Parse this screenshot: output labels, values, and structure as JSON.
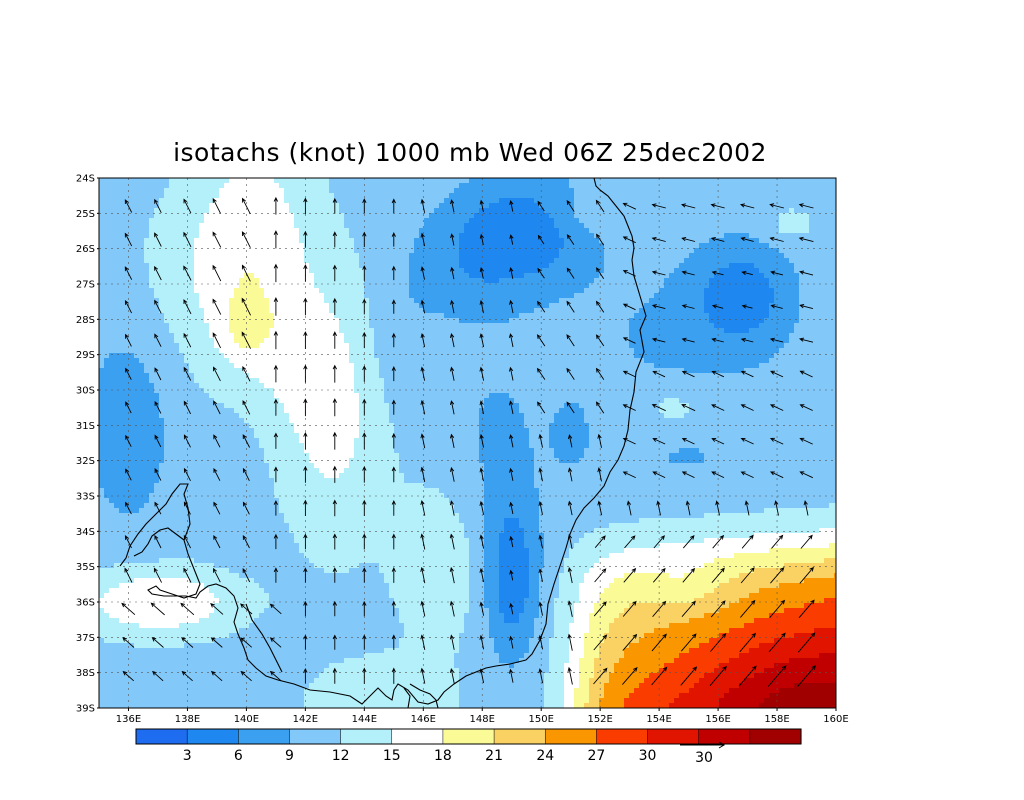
{
  "title": "isotachs (knot) 1000 mb Wed 06Z 25dec2002",
  "lat_labels": [
    "24S",
    "25S",
    "26S",
    "27S",
    "28S",
    "29S",
    "30S",
    "31S",
    "32S",
    "33S",
    "34S",
    "35S",
    "36S",
    "37S",
    "38S",
    "39S"
  ],
  "lon_labels": [
    "136E",
    "138E",
    "140E",
    "142E",
    "144E",
    "146E",
    "148E",
    "150E",
    "152E",
    "154E",
    "156E",
    "158E",
    "160E"
  ],
  "colorbar": {
    "colors": [
      "#1e6cf0",
      "#1e88f0",
      "#3ca0f0",
      "#82c8f8",
      "#b4f0fa",
      "#ffffff",
      "#fafa96",
      "#fad264",
      "#fa9600",
      "#fa3c00",
      "#e11400",
      "#c00000",
      "#a00000"
    ],
    "labels": [
      "3",
      "6",
      "9",
      "12",
      "15",
      "18",
      "21",
      "24",
      "27",
      "30"
    ]
  },
  "reference_vector": {
    "label": "30"
  },
  "colors": {
    "coast": "#000000",
    "vector": "#000000",
    "grid": "#555555"
  }
}
